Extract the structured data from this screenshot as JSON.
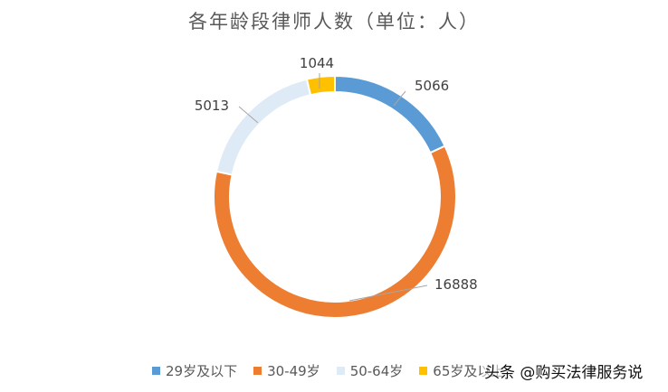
{
  "chart_data": {
    "type": "pie",
    "subtype": "donut",
    "title": "各年龄段律师人数（单位：人）",
    "categories": [
      "29岁及以下",
      "30-49岁",
      "50-64岁",
      "65岁及以上"
    ],
    "values": [
      5066,
      16888,
      5013,
      1044
    ],
    "data_labels": [
      "5066",
      "16888",
      "5013",
      "1044"
    ],
    "colors": [
      "#5B9BD5",
      "#ED7D31",
      "#DEEBF7",
      "#FFC000"
    ],
    "legend_position": "bottom"
  },
  "legend": {
    "items": [
      {
        "label": "29岁及以下",
        "color": "#5B9BD5"
      },
      {
        "label": "30-49岁",
        "color": "#ED7D31"
      },
      {
        "label": "50-64岁",
        "color": "#DEEBF7"
      },
      {
        "label": "65岁及以上",
        "color": "#FFC000"
      }
    ]
  },
  "watermark": {
    "text": "头条 @购买法律服务说"
  }
}
